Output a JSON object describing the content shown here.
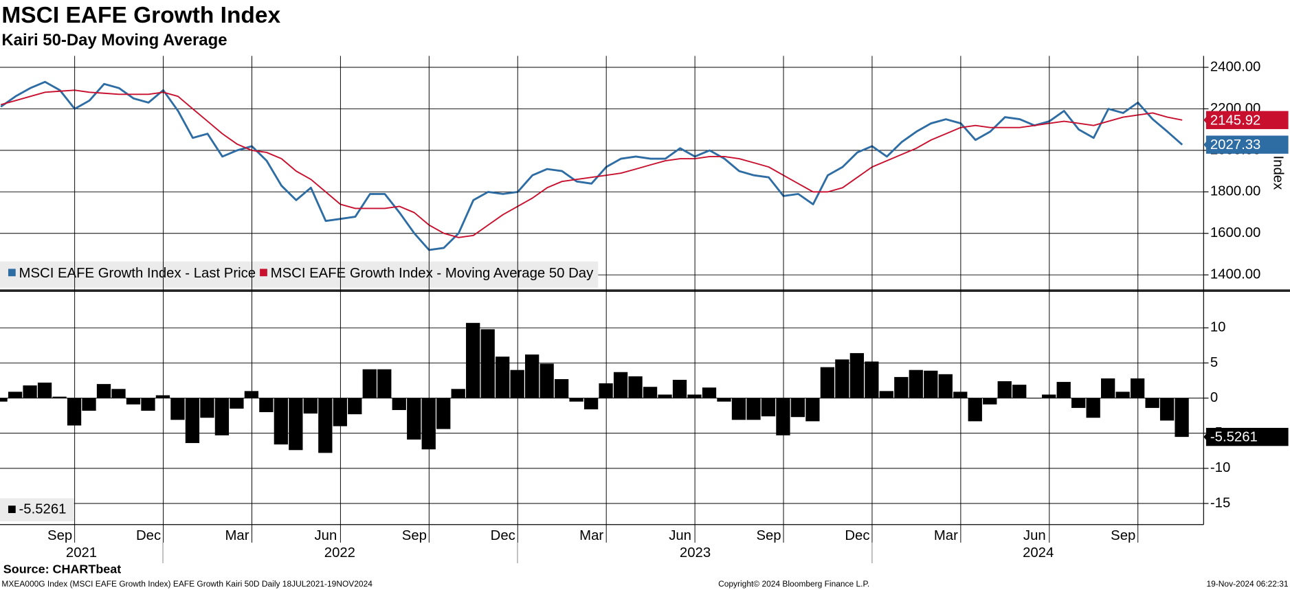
{
  "title": "MSCI EAFE Growth Index",
  "subtitle": "Kairi 50-Day Moving Average",
  "source": "Source: CHARTbeat",
  "footer": {
    "left": "MXEA000G Index (MSCI EAFE Growth Index) EAFE Growth Kairi 50D  Daily 18JUL2021-19NOV2024",
    "center": "Copyright© 2024 Bloomberg Finance L.P.",
    "right": "19-Nov-2024 06:22:31"
  },
  "chart_data": [
    {
      "type": "line",
      "ylabel": "Index",
      "ylim": [
        1330,
        2455
      ],
      "yticks": [
        {
          "value": 1400,
          "label": "1400.00"
        },
        {
          "value": 1600,
          "label": "1600.00"
        },
        {
          "value": 1800,
          "label": "1800.00"
        },
        {
          "value": 2000,
          "label": "2000.00"
        },
        {
          "value": 2200,
          "label": "2200.00"
        },
        {
          "value": 2400,
          "label": "2400.00"
        }
      ],
      "grid": true,
      "series": [
        {
          "name": "MSCI EAFE Growth Index - Last Price",
          "color": "#2e6ca4",
          "values": [
            2210,
            2260,
            2300,
            2330,
            2290,
            2200,
            2240,
            2320,
            2300,
            2250,
            2230,
            2290,
            2190,
            2060,
            2080,
            1970,
            2000,
            2020,
            1950,
            1830,
            1760,
            1820,
            1660,
            1670,
            1680,
            1790,
            1790,
            1700,
            1600,
            1520,
            1530,
            1600,
            1760,
            1800,
            1790,
            1800,
            1880,
            1910,
            1900,
            1850,
            1840,
            1920,
            1960,
            1970,
            1960,
            1960,
            2010,
            1970,
            2000,
            1960,
            1900,
            1880,
            1870,
            1780,
            1790,
            1740,
            1880,
            1920,
            1990,
            2020,
            1970,
            2040,
            2090,
            2130,
            2150,
            2130,
            2050,
            2090,
            2160,
            2150,
            2120,
            2140,
            2190,
            2100,
            2060,
            2200,
            2180,
            2230,
            2150,
            2090,
            2027.33
          ]
        },
        {
          "name": "MSCI EAFE Growth Index - Moving Average 50 Day",
          "color": "#c8102e",
          "values": [
            2220,
            2240,
            2260,
            2280,
            2285,
            2290,
            2280,
            2275,
            2270,
            2270,
            2270,
            2280,
            2260,
            2200,
            2140,
            2080,
            2030,
            2000,
            1990,
            1960,
            1900,
            1860,
            1800,
            1740,
            1720,
            1720,
            1720,
            1730,
            1700,
            1640,
            1600,
            1580,
            1590,
            1640,
            1690,
            1730,
            1770,
            1820,
            1850,
            1860,
            1870,
            1880,
            1890,
            1910,
            1930,
            1950,
            1960,
            1960,
            1970,
            1970,
            1960,
            1940,
            1920,
            1880,
            1840,
            1800,
            1800,
            1820,
            1870,
            1920,
            1950,
            1980,
            2010,
            2050,
            2080,
            2110,
            2120,
            2110,
            2110,
            2110,
            2120,
            2130,
            2140,
            2130,
            2120,
            2140,
            2160,
            2170,
            2180,
            2160,
            2145.92
          ]
        }
      ]
    },
    {
      "type": "bar",
      "color": "#000000",
      "ylim": [
        -18,
        15
      ],
      "yticks": [
        -15,
        -10,
        -5,
        0,
        5,
        10
      ],
      "grid": true,
      "categories": [
        null,
        null,
        null,
        null,
        "Sep",
        null,
        null,
        null,
        null,
        null,
        "Dec",
        null,
        null,
        null,
        null,
        null,
        "Mar",
        null,
        null,
        null,
        null,
        null,
        "Jun",
        null,
        null,
        null,
        null,
        null,
        "Sep",
        null,
        null,
        null,
        null,
        null,
        "Dec",
        null,
        null,
        null,
        null,
        null,
        "Mar",
        null,
        null,
        null,
        null,
        null,
        "Jun",
        null,
        null,
        null,
        null,
        null,
        "Sep",
        null,
        null,
        null,
        null,
        null,
        "Dec",
        null,
        null,
        null,
        null,
        null,
        "Mar",
        null,
        null,
        null,
        null,
        null,
        "Jun",
        null,
        null,
        null,
        null,
        null,
        "Sep",
        null,
        null,
        null,
        null
      ],
      "x_groups": [
        "2021",
        "2022",
        "2023",
        "2024"
      ],
      "values": [
        -0.5,
        0.9,
        1.8,
        2.2,
        0.2,
        -3.9,
        -1.8,
        2.0,
        1.3,
        -0.9,
        -1.8,
        0.4,
        -3.1,
        -6.4,
        -2.8,
        -5.3,
        -1.5,
        1.0,
        -2.0,
        -6.6,
        -7.4,
        -2.2,
        -7.8,
        -4.0,
        -2.3,
        4.1,
        4.1,
        -1.7,
        -5.9,
        -7.3,
        -4.4,
        1.3,
        10.7,
        9.8,
        5.9,
        4.0,
        6.2,
        4.9,
        2.7,
        -0.5,
        -1.6,
        2.1,
        3.7,
        3.1,
        1.6,
        0.5,
        2.6,
        0.5,
        1.5,
        -0.5,
        -3.1,
        -3.1,
        -2.6,
        -5.3,
        -2.7,
        -3.3,
        4.4,
        5.5,
        6.4,
        5.2,
        1.0,
        3.0,
        4.0,
        3.9,
        3.4,
        0.9,
        -3.3,
        -0.9,
        2.4,
        1.9,
        0,
        0.5,
        2.3,
        -1.4,
        -2.8,
        2.8,
        0.9,
        2.8,
        -1.4,
        -3.2,
        -5.5261
      ]
    }
  ]
}
